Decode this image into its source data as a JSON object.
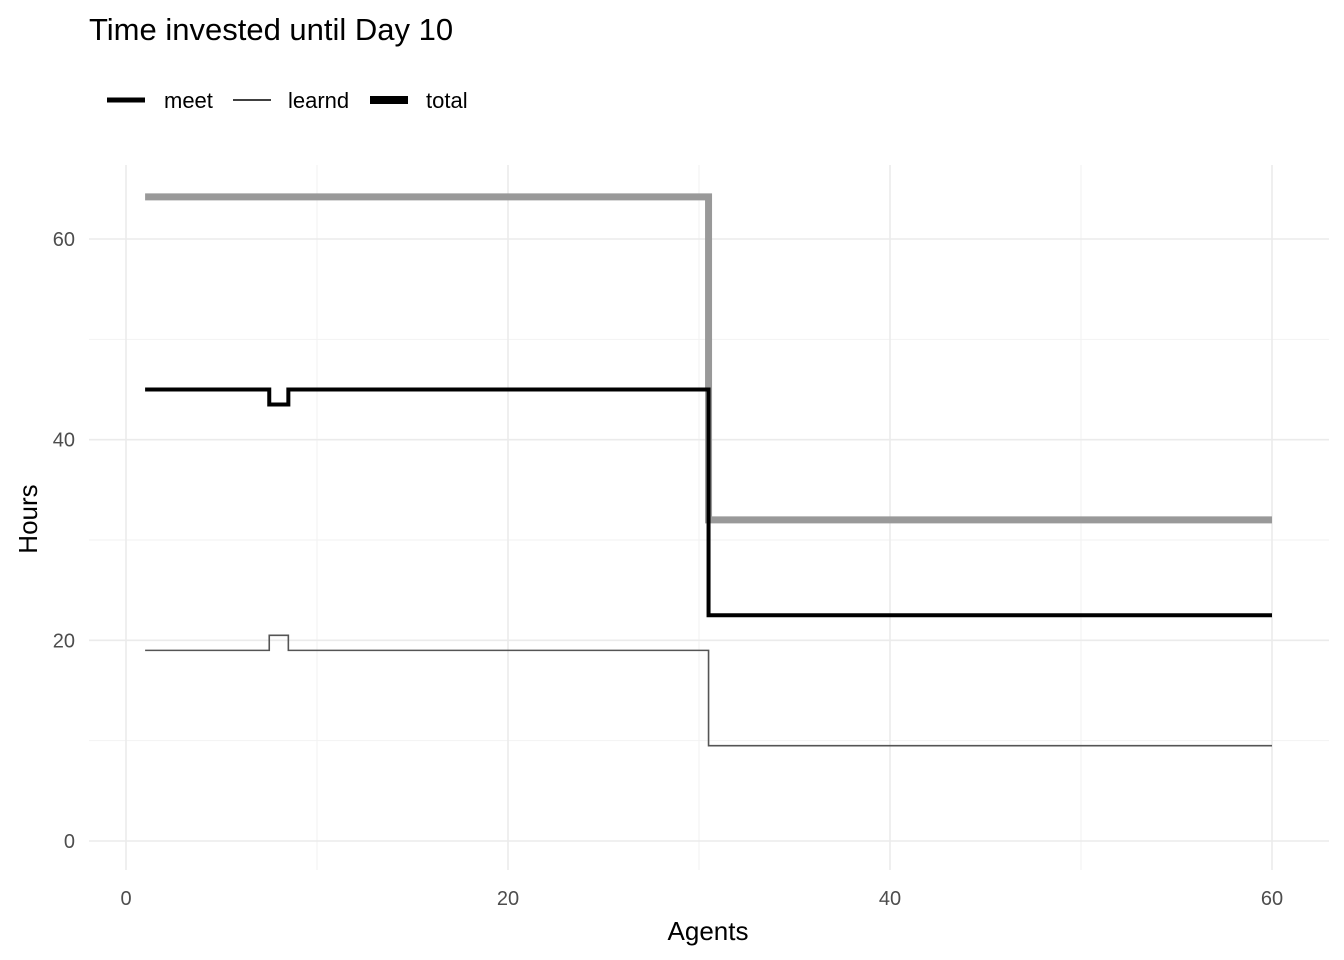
{
  "chart_data": {
    "type": "line",
    "step": "mid",
    "title": "Time invested until Day 10",
    "xlabel": "Agents",
    "ylabel": "Hours",
    "xlim": [
      0,
      60
    ],
    "ylim": [
      0,
      65
    ],
    "x_ticks": [
      0,
      20,
      40,
      60
    ],
    "x_minor_ticks": [
      10,
      30,
      50
    ],
    "y_ticks": [
      0,
      20,
      40,
      60
    ],
    "y_minor_ticks": [
      10,
      30,
      50
    ],
    "grid": true,
    "legend_position": "top-left",
    "legend": [
      {
        "name": "meet",
        "color": "#000000",
        "width": "thick"
      },
      {
        "name": "learnd",
        "color": "#000000",
        "width": "thin"
      },
      {
        "name": "total",
        "color": "#000000",
        "width": "thickest"
      }
    ],
    "series": [
      {
        "name": "total",
        "color": "#999999",
        "x": [
          1,
          30,
          31,
          60
        ],
        "y": [
          64.2,
          64.2,
          32,
          32
        ]
      },
      {
        "name": "meet",
        "color": "#000000",
        "x": [
          1,
          7,
          8,
          9,
          30,
          31,
          60
        ],
        "y": [
          45,
          45,
          43.5,
          45,
          45,
          22.5,
          22.5
        ]
      },
      {
        "name": "learnd",
        "color": "#555555",
        "x": [
          1,
          7,
          8,
          9,
          30,
          31,
          60
        ],
        "y": [
          19,
          19,
          20.5,
          19,
          19,
          9.5,
          9.5
        ]
      }
    ]
  }
}
